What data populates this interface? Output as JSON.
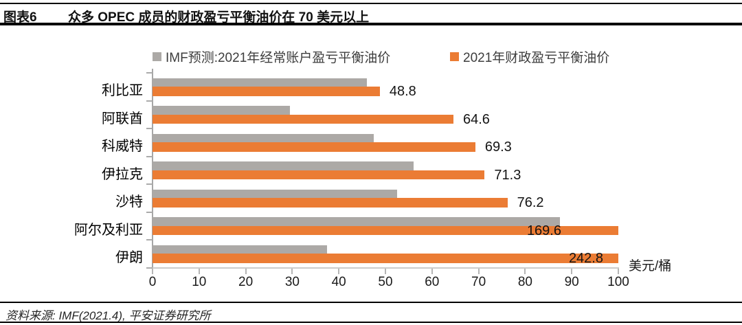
{
  "header": {
    "figure_label": "图表6",
    "title": "众多 OPEC 成员的财政盈亏平衡油价在 70 美元以上"
  },
  "legend": [
    {
      "label": "IMF预测:2021年经常账户盈亏平衡油价",
      "color": "#ACA9A6"
    },
    {
      "label": "2021年财政盈亏平衡油价",
      "color": "#EB7C34"
    }
  ],
  "footer": {
    "source": "资料来源: IMF(2021.4), 平安证券研究所"
  },
  "chart_data": {
    "type": "bar",
    "orientation": "horizontal",
    "title": "众多 OPEC 成员的财政盈亏平衡油价在 70 美元以上",
    "categories": [
      "利比亚",
      "阿联酋",
      "科威特",
      "伊拉克",
      "沙特",
      "阿尔及利亚",
      "伊朗"
    ],
    "series": [
      {
        "name": "IMF预测:2021年经常账户盈亏平衡油价",
        "color": "#ACA9A6",
        "values": [
          46.0,
          29.5,
          47.5,
          56.0,
          52.5,
          87.5,
          37.5
        ],
        "value_labels_shown": false,
        "note": "values estimated from bar lengths; chart shows no labels for this series"
      },
      {
        "name": "2021年财政盈亏平衡油价",
        "color": "#EB7C34",
        "values": [
          48.8,
          64.6,
          69.3,
          71.3,
          76.2,
          169.6,
          242.8
        ],
        "value_labels_shown": true,
        "value_labels": [
          "48.8",
          "64.6",
          "69.3",
          "71.3",
          "76.2",
          "169.6",
          "242.8"
        ]
      }
    ],
    "xlim": [
      0,
      100
    ],
    "x_ticks": [
      "0",
      "10",
      "20",
      "30",
      "40",
      "50",
      "60",
      "70",
      "80",
      "90",
      "100"
    ],
    "x_unit_label": "美元/桶",
    "bars_exceeding_axis_are_clipped": true,
    "legend_position": "top",
    "grid": false
  }
}
